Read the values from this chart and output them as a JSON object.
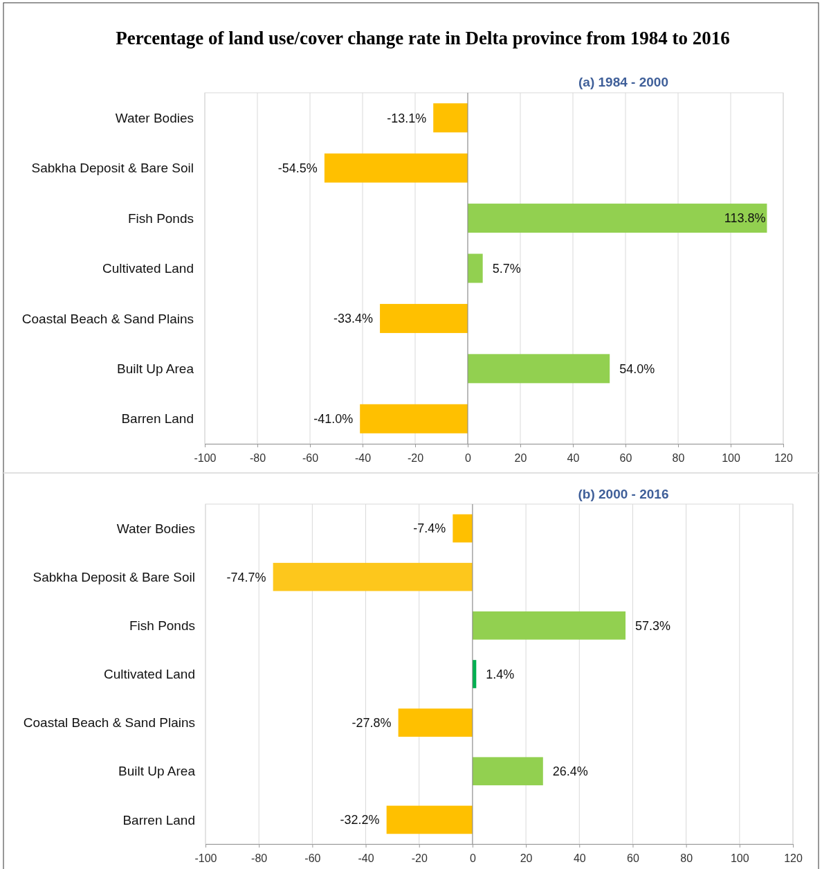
{
  "chart_data": [
    {
      "type": "bar",
      "orientation": "horizontal",
      "title": "Percentage of  land use/cover change rate in Delta province from 1984 to 2016",
      "subtitle": "(a) 1984 - 2000",
      "categories": [
        "Water Bodies",
        "Sabkha Deposit & Bare Soil",
        "Fish Ponds",
        "Cultivated Land",
        "Coastal Beach & Sand Plains",
        "Built Up Area",
        "Barren Land"
      ],
      "values": [
        -13.1,
        -54.5,
        113.8,
        5.7,
        -33.4,
        54.0,
        -41.0
      ],
      "value_labels": [
        "-13.1%",
        "-54.5%",
        "113.8%",
        "5.7%",
        "-33.4%",
        "54.0%",
        "-41.0%"
      ],
      "colors": [
        "#ffc000",
        "#ffc000",
        "#92d050",
        "#92d050",
        "#ffc000",
        "#92d050",
        "#ffc000"
      ],
      "xlim": [
        -100,
        120
      ],
      "xticks": [
        -100,
        -80,
        -60,
        -40,
        -20,
        0,
        20,
        40,
        60,
        80,
        100,
        120
      ],
      "grid": "x"
    },
    {
      "type": "bar",
      "orientation": "horizontal",
      "title": "(b) 2000 - 2016",
      "categories": [
        "Water Bodies",
        "Sabkha Deposit & Bare Soil",
        "Fish Ponds",
        "Cultivated Land",
        "Coastal Beach & Sand Plains",
        "Built Up Area",
        "Barren Land"
      ],
      "values": [
        -7.4,
        -74.7,
        57.3,
        1.4,
        -27.8,
        26.4,
        -32.2
      ],
      "value_labels": [
        "-7.4%",
        "-74.7%",
        "57.3%",
        "1.4%",
        "-27.8%",
        "26.4%",
        "-32.2%"
      ],
      "colors": [
        "#ffc000",
        "#fdc71c",
        "#92d050",
        "#00b050",
        "#ffc000",
        "#92d050",
        "#ffc000"
      ],
      "xlim": [
        -100,
        120
      ],
      "xticks": [
        -100,
        -80,
        -60,
        -40,
        -20,
        0,
        20,
        40,
        60,
        80,
        100,
        120
      ],
      "grid": "x"
    }
  ]
}
